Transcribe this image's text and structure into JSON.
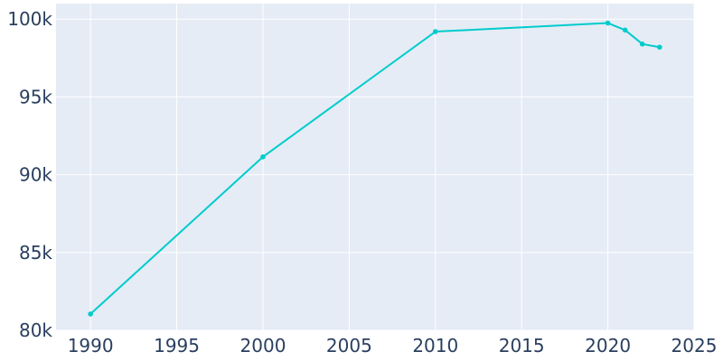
{
  "chart_data": {
    "type": "line",
    "title": "",
    "xlabel": "",
    "ylabel": "",
    "xlim": [
      1988,
      2025
    ],
    "ylim": [
      80000,
      101000
    ],
    "x_ticks": [
      1990,
      1995,
      2000,
      2005,
      2010,
      2015,
      2020,
      2025
    ],
    "x_tick_labels": [
      "1990",
      "1995",
      "2000",
      "2005",
      "2010",
      "2015",
      "2020",
      "2025"
    ],
    "y_ticks": [
      80000,
      85000,
      90000,
      95000,
      100000
    ],
    "y_tick_labels": [
      "80k",
      "85k",
      "90k",
      "95k",
      "100k"
    ],
    "grid": true,
    "legend": "none",
    "series": [
      {
        "color": "#00cccc",
        "x": [
          1990,
          2000,
          2010,
          2020,
          2021,
          2022,
          2023
        ],
        "y": [
          81050,
          91150,
          99200,
          99750,
          99300,
          98400,
          98200
        ]
      }
    ],
    "colors": {
      "plot_bg": "#e5ecf6",
      "grid": "#ffffff",
      "text": "#2a3f5f"
    }
  }
}
